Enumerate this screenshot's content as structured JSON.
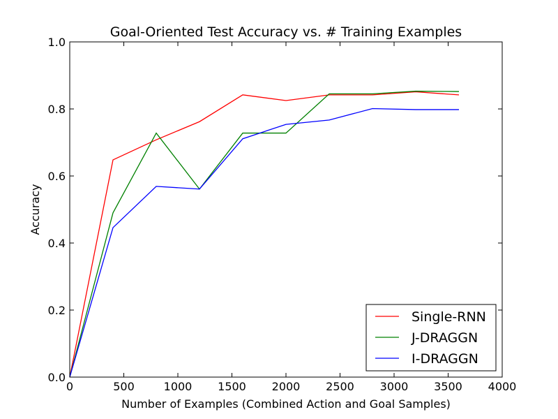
{
  "chart_data": {
    "type": "line",
    "title": "Goal-Oriented Test Accuracy vs. # Training Examples",
    "xlabel": "Number of Examples (Combined Action and Goal Samples)",
    "ylabel": "Accuracy",
    "xlim": [
      0,
      4000
    ],
    "ylim": [
      0.0,
      1.0
    ],
    "xticks": [
      0,
      500,
      1000,
      1500,
      2000,
      2500,
      3000,
      3500,
      4000
    ],
    "xtick_labels": [
      "0",
      "500",
      "1000",
      "1500",
      "2000",
      "2500",
      "3000",
      "3500",
      "4000"
    ],
    "yticks": [
      0.0,
      0.2,
      0.4,
      0.6,
      0.8,
      1.0
    ],
    "ytick_labels": [
      "0.0",
      "0.2",
      "0.4",
      "0.6",
      "0.8",
      "1.0"
    ],
    "grid": false,
    "legend_position": "lower-right",
    "x": [
      0,
      400,
      800,
      1200,
      1600,
      2000,
      2400,
      2800,
      3200,
      3600
    ],
    "series": [
      {
        "name": "Single-RNN",
        "color": "#ff0000",
        "values": [
          0.0,
          0.648,
          0.708,
          0.762,
          0.842,
          0.825,
          0.842,
          0.842,
          0.851,
          0.842
        ]
      },
      {
        "name": "J-DRAGGN",
        "color": "#008000",
        "values": [
          0.0,
          0.49,
          0.728,
          0.561,
          0.728,
          0.728,
          0.845,
          0.845,
          0.853,
          0.852
        ]
      },
      {
        "name": "I-DRAGGN",
        "color": "#0000ff",
        "values": [
          0.0,
          0.446,
          0.569,
          0.561,
          0.711,
          0.754,
          0.767,
          0.801,
          0.798,
          0.798
        ]
      }
    ]
  }
}
